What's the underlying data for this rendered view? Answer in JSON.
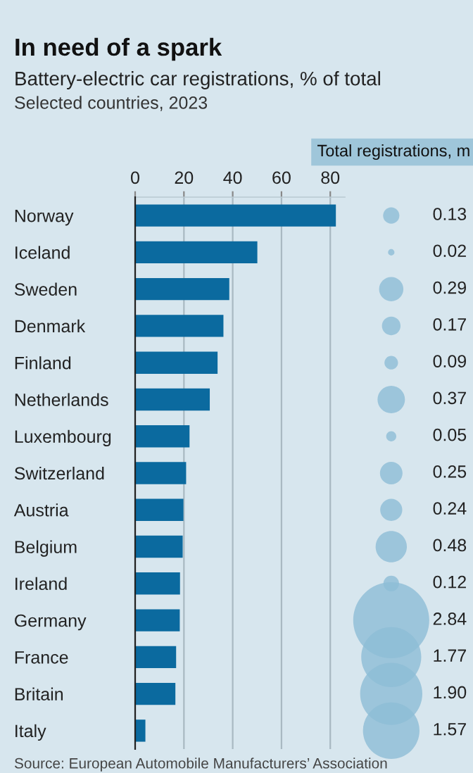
{
  "chart_data": [
    {
      "type": "bar",
      "orientation": "horizontal",
      "title": "In need of a spark",
      "subtitle": "Battery-electric car registrations, % of total\nSelected countries, 2023",
      "categories": [
        "Norway",
        "Iceland",
        "Sweden",
        "Denmark",
        "Finland",
        "Netherlands",
        "Luxembourg",
        "Switzerland",
        "Austria",
        "Belgium",
        "Ireland",
        "Germany",
        "France",
        "Britain",
        "Italy"
      ],
      "values": [
        82.3,
        50.1,
        38.6,
        36.2,
        33.8,
        30.6,
        22.3,
        20.9,
        19.8,
        19.5,
        18.4,
        18.3,
        16.8,
        16.5,
        4.2
      ],
      "color": "#0b6a9f",
      "xlim": [
        0,
        86
      ],
      "xticks": [
        0,
        20,
        40,
        60,
        80
      ],
      "grid": "x",
      "annotations": [
        "Source: European Automobile Manufacturers’ Association"
      ]
    },
    {
      "type": "other",
      "title": "Total registrations, m",
      "values": [
        0.13,
        0.02,
        0.29,
        0.17,
        0.09,
        0.37,
        0.05,
        0.25,
        0.24,
        0.48,
        0.12,
        2.84,
        1.77,
        1.9,
        1.57
      ],
      "value_labels": [
        "0.13",
        "0.02",
        "0.29",
        "0.17",
        "0.09",
        "0.37",
        "0.05",
        "0.25",
        "0.24",
        "0.48",
        "0.12",
        "2.84",
        "1.77",
        "1.90",
        "1.57"
      ],
      "color": "#8dbdd6"
    }
  ]
}
